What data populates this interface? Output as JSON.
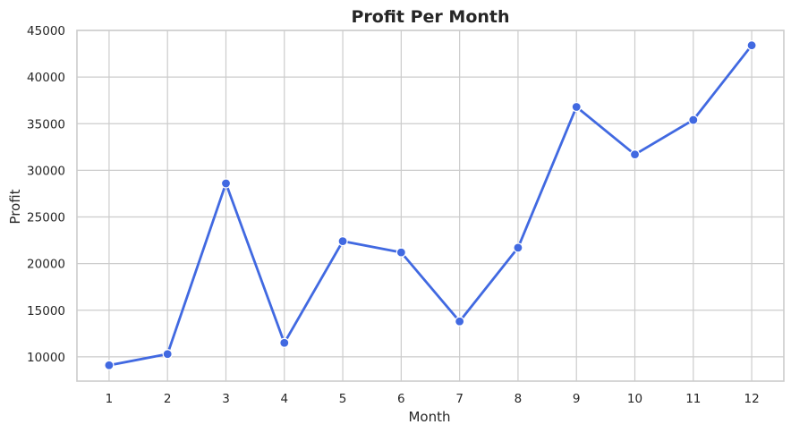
{
  "chart_data": {
    "type": "line",
    "title": "Profit Per Month",
    "xlabel": "Month",
    "ylabel": "Profit",
    "x": [
      1,
      2,
      3,
      4,
      5,
      6,
      7,
      8,
      9,
      10,
      11,
      12
    ],
    "x_tick_labels": [
      "1",
      "2",
      "3",
      "4",
      "5",
      "6",
      "7",
      "8",
      "9",
      "10",
      "11",
      "12"
    ],
    "xlim": [
      0.45,
      12.55
    ],
    "ylim": [
      7400,
      45000
    ],
    "y_ticks": [
      10000,
      15000,
      20000,
      25000,
      30000,
      35000,
      40000,
      45000
    ],
    "y_tick_labels": [
      "10000",
      "15000",
      "20000",
      "25000",
      "30000",
      "35000",
      "40000",
      "45000"
    ],
    "series": [
      {
        "values": [
          9100,
          10300,
          28600,
          11500,
          22400,
          21200,
          13800,
          21700,
          36800,
          31700,
          35400,
          43400
        ],
        "color": "#4169E1",
        "marker": "circle"
      }
    ],
    "grid": true,
    "legend": "none"
  }
}
